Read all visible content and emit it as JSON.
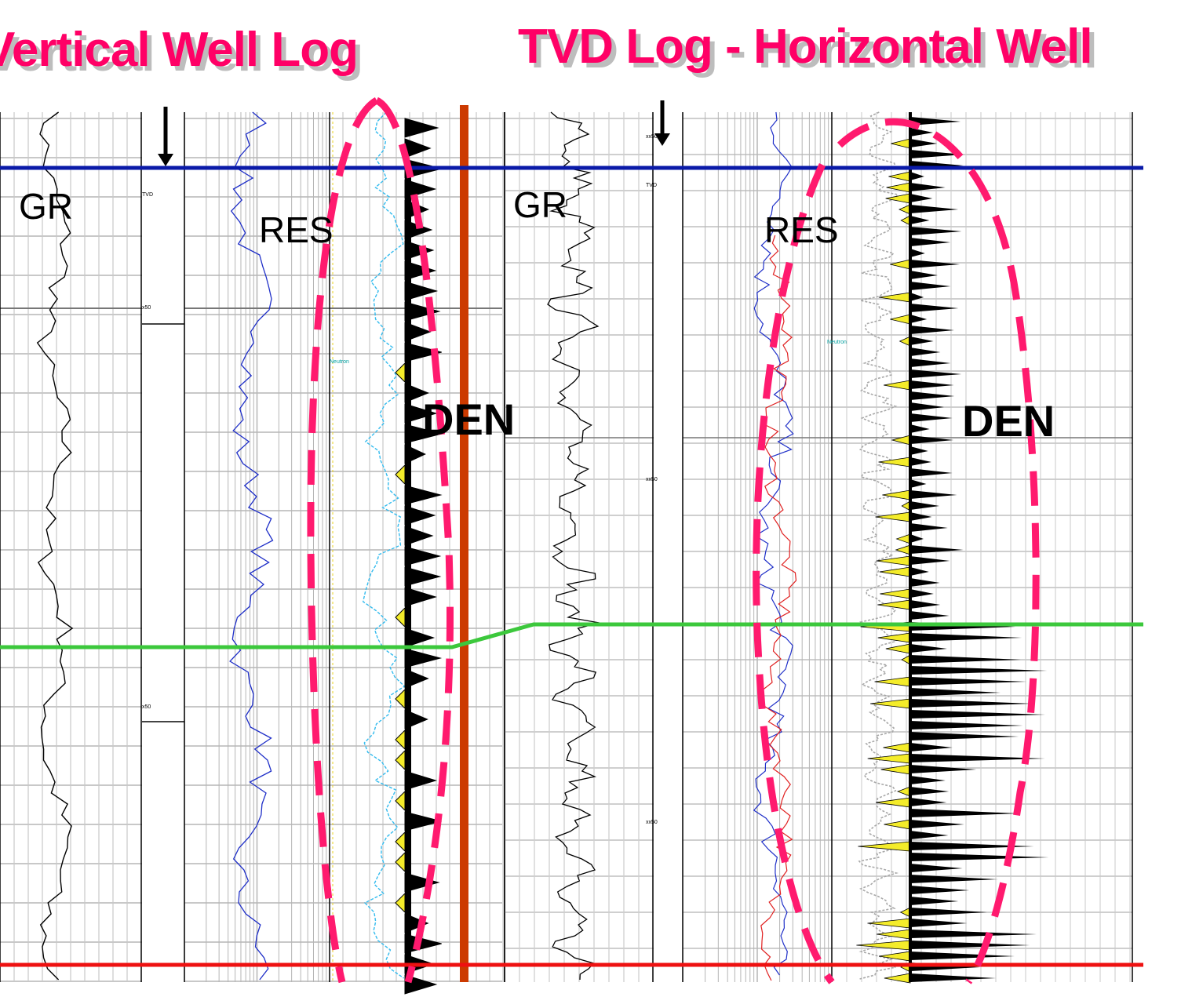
{
  "titles": {
    "left": "Vertical Well Log",
    "right": "TVD Log - Horizontal Well"
  },
  "labels": {
    "gr_left": "GR",
    "res_left": "RES",
    "den_left": "DEN",
    "gr_right": "GR",
    "res_right": "RES",
    "den_right": "DEN"
  },
  "track_text": {
    "tvd_left": "TVD",
    "depth_left_1": "x50",
    "depth_left_2": "x50",
    "neutron_left": "Neutron",
    "tvd_right": "TVD",
    "depth_right_0": "xx50",
    "depth_right_1": "xx50",
    "depth_right_2": "xx50",
    "neutron_right": "Neutron"
  },
  "colors": {
    "title": "#ff0066",
    "title_shadow": "#bdbdbd",
    "top_marker": "#0a1aa8",
    "mid_marker": "#3cc83c",
    "bottom_marker": "#ee1111",
    "separator": "#cc3a00",
    "ellipse": "#ff1a6e",
    "res_curve": "#1f2fc8",
    "res_curve_deep": "#e02020",
    "neutron_curve": "#33bbee",
    "fill_yellow": "#f4ec2a"
  },
  "icons": [
    "down-arrow-icon",
    "down-arrow-icon"
  ]
}
